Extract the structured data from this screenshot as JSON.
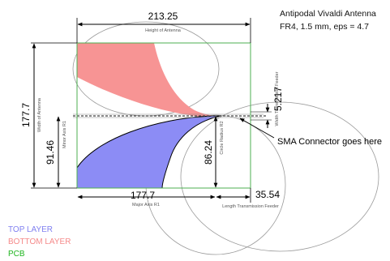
{
  "title": {
    "line1": "Antipodal Vivaldi Antenna",
    "line2": "FR4, 1.5 mm, eps = 4.7"
  },
  "dimensions": {
    "height_of_antenna_value": "213.25",
    "height_of_antenna_label": "Height of Antenna",
    "width_of_antenna_value": "177.7",
    "width_of_antenna_label": "Width of Antenna",
    "minor_axis_value": "91.46",
    "minor_axis_label": "Minor Axis R1",
    "circle_radius_value": "86.24",
    "circle_radius_label": "Circle Radius R2",
    "major_axis_value": "177.7",
    "major_axis_label": "Major Axis R1",
    "feeder_length_value": "35.54",
    "feeder_length_label": "Length Transmission Feeder",
    "feeder_width_value": "5.217",
    "feeder_width_label": "Width Transmission Feeder"
  },
  "callout": {
    "label": "SMA Connector goes here"
  },
  "legend": {
    "items": [
      {
        "label": "TOP LAYER",
        "color": "#7f7ff0"
      },
      {
        "label": "BOTTOM LAYER",
        "color": "#f58a8a"
      },
      {
        "label": "PCB",
        "color": "#1fb51f"
      }
    ]
  },
  "colors": {
    "top_layer_fill": "#8c8cf5",
    "bottom_layer_fill": "#f79494",
    "pcb_outline": "#4caf50",
    "construction_lines": "#8a8a8a"
  }
}
